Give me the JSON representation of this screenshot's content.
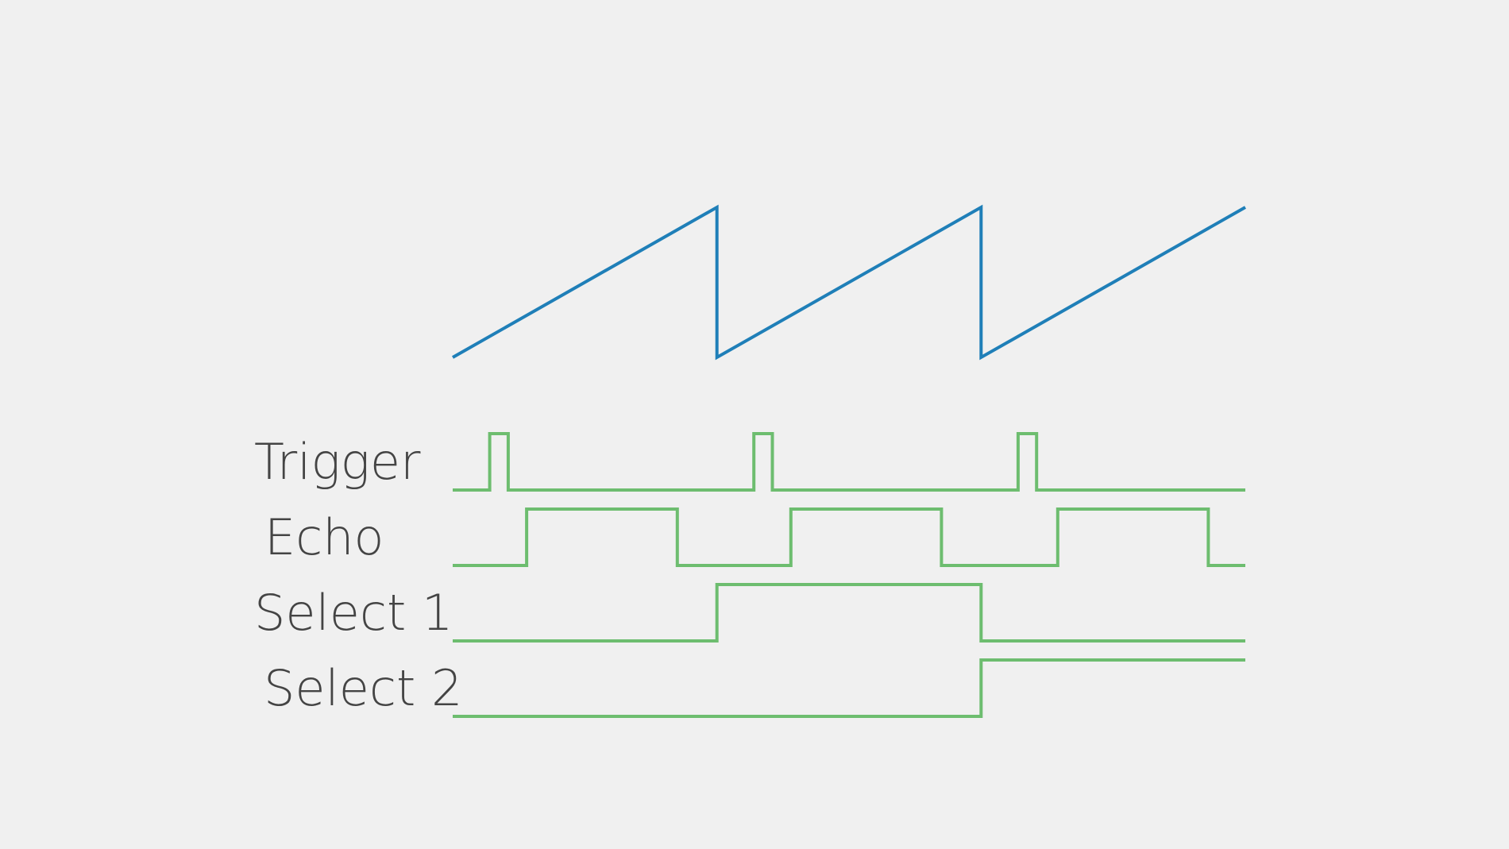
{
  "colors": {
    "background": "#f0f0f0",
    "ramp": "#1f7fb8",
    "digital": "#6dbd6f",
    "label_text": "#444444"
  },
  "timeline": {
    "t_start": 0,
    "t_end": 3,
    "cycle_boundaries": [
      1,
      2
    ]
  },
  "ramp": {
    "name": "",
    "points": [
      [
        0,
        0
      ],
      [
        1,
        1
      ],
      [
        1,
        0
      ],
      [
        2,
        1
      ],
      [
        2,
        0
      ],
      [
        3,
        1
      ]
    ]
  },
  "signals": [
    {
      "id": "trigger",
      "label": "Trigger",
      "initial": 0,
      "transitions": [
        0.14,
        0.21,
        1.14,
        1.21,
        2.14,
        2.21
      ]
    },
    {
      "id": "echo",
      "label": "Echo",
      "initial": 0,
      "transitions": [
        0.28,
        0.85,
        1.28,
        1.85,
        2.29,
        2.86
      ]
    },
    {
      "id": "select1",
      "label": "Select 1",
      "initial": 0,
      "transitions": [
        1.0,
        2.0
      ]
    },
    {
      "id": "select2",
      "label": "Select 2",
      "initial": 0,
      "transitions": [
        2.0
      ]
    }
  ]
}
